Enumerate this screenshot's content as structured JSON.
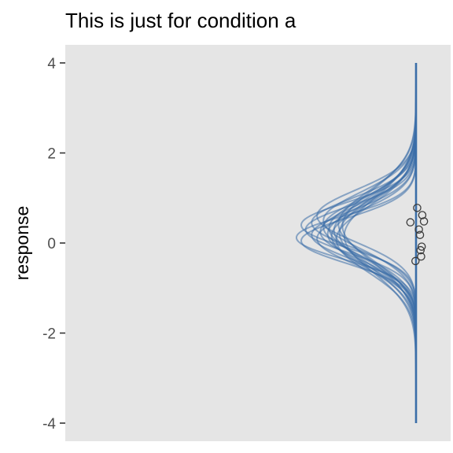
{
  "chart_data": {
    "type": "line",
    "title": "This is just for condition a",
    "xlabel": "",
    "ylabel": "response",
    "ylim": [
      -4,
      4
    ],
    "y_ticks": [
      {
        "value": 4,
        "label": "4"
      },
      {
        "value": 2,
        "label": "2"
      },
      {
        "value": 0,
        "label": "0"
      },
      {
        "value": -2,
        "label": "-2"
      },
      {
        "value": -4,
        "label": "-4"
      }
    ],
    "grid": false,
    "legend": "none",
    "colors": {
      "panel": "#e5e5e5",
      "curve": "#3b6ea8",
      "curve_opacity": 0.55,
      "point_stroke": "#3a3a3a",
      "tick": "#333333"
    },
    "density_curves": {
      "description_values": "posterior predictive normal densities (mean, sd) drawn sideways",
      "series": [
        {
          "mean": 0.12,
          "sd": 0.48
        },
        {
          "mean": 0.3,
          "sd": 0.52
        },
        {
          "mean": 0.05,
          "sd": 0.5
        },
        {
          "mean": 0.18,
          "sd": 0.55
        },
        {
          "mean": 0.4,
          "sd": 0.5
        },
        {
          "mean": 0.25,
          "sd": 0.6
        },
        {
          "mean": 0.1,
          "sd": 0.58
        },
        {
          "mean": 0.35,
          "sd": 0.62
        },
        {
          "mean": 0.2,
          "sd": 0.65
        },
        {
          "mean": 0.45,
          "sd": 0.55
        },
        {
          "mean": 0.15,
          "sd": 0.68
        },
        {
          "mean": 0.28,
          "sd": 0.7
        },
        {
          "mean": 0.5,
          "sd": 0.62
        },
        {
          "mean": 0.08,
          "sd": 0.72
        },
        {
          "mean": 0.33,
          "sd": 0.66
        },
        {
          "mean": 0.22,
          "sd": 0.75
        },
        {
          "mean": 0.6,
          "sd": 0.58
        },
        {
          "mean": 0.38,
          "sd": 0.78
        },
        {
          "mean": 0.16,
          "sd": 0.8
        },
        {
          "mean": 0.42,
          "sd": 0.74
        }
      ]
    },
    "points": [
      {
        "x": 0.04,
        "y": 0.78
      },
      {
        "x": 0.22,
        "y": 0.62
      },
      {
        "x": 0.28,
        "y": 0.48
      },
      {
        "x": -0.2,
        "y": 0.46
      },
      {
        "x": 0.1,
        "y": 0.3
      },
      {
        "x": 0.14,
        "y": 0.18
      },
      {
        "x": 0.2,
        "y": -0.08
      },
      {
        "x": 0.16,
        "y": -0.16
      },
      {
        "x": 0.18,
        "y": -0.3
      },
      {
        "x": -0.02,
        "y": -0.4
      }
    ]
  }
}
